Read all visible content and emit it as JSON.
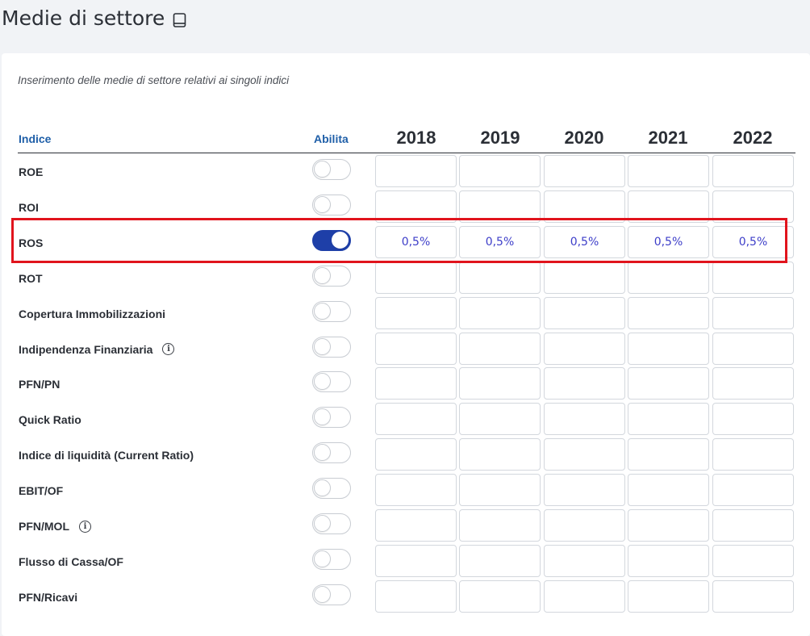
{
  "page": {
    "title": "Medie di settore",
    "title_icon": "book-icon",
    "subtitle": "Inserimento delle medie di settore relativi ai singoli indici"
  },
  "table": {
    "col_indice": "Indice",
    "col_abilita": "Abilita",
    "years": [
      "2018",
      "2019",
      "2020",
      "2021",
      "2022"
    ],
    "rows": [
      {
        "label": "ROE",
        "enabled": false,
        "info": false,
        "values": [
          "",
          "",
          "",
          "",
          ""
        ]
      },
      {
        "label": "ROI",
        "enabled": false,
        "info": false,
        "values": [
          "",
          "",
          "",
          "",
          ""
        ]
      },
      {
        "label": "ROS",
        "enabled": true,
        "info": false,
        "values": [
          "0,5%",
          "0,5%",
          "0,5%",
          "0,5%",
          "0,5%"
        ]
      },
      {
        "label": "ROT",
        "enabled": false,
        "info": false,
        "values": [
          "",
          "",
          "",
          "",
          ""
        ]
      },
      {
        "label": "Copertura Immobilizzazioni",
        "enabled": false,
        "info": false,
        "values": [
          "",
          "",
          "",
          "",
          ""
        ]
      },
      {
        "label": "Indipendenza Finanziaria",
        "enabled": false,
        "info": true,
        "values": [
          "",
          "",
          "",
          "",
          ""
        ]
      },
      {
        "label": "PFN/PN",
        "enabled": false,
        "info": false,
        "values": [
          "",
          "",
          "",
          "",
          ""
        ]
      },
      {
        "label": "Quick Ratio",
        "enabled": false,
        "info": false,
        "values": [
          "",
          "",
          "",
          "",
          ""
        ]
      },
      {
        "label": "Indice di liquidità (Current Ratio)",
        "enabled": false,
        "info": false,
        "values": [
          "",
          "",
          "",
          "",
          ""
        ]
      },
      {
        "label": "EBIT/OF",
        "enabled": false,
        "info": false,
        "values": [
          "",
          "",
          "",
          "",
          ""
        ]
      },
      {
        "label": "PFN/MOL",
        "enabled": false,
        "info": true,
        "values": [
          "",
          "",
          "",
          "",
          ""
        ]
      },
      {
        "label": "Flusso di Cassa/OF",
        "enabled": false,
        "info": false,
        "values": [
          "",
          "",
          "",
          "",
          ""
        ]
      },
      {
        "label": "PFN/Ricavi",
        "enabled": false,
        "info": false,
        "values": [
          "",
          "",
          "",
          "",
          ""
        ]
      }
    ]
  },
  "colors": {
    "accent": "#1f5fa8",
    "toggle_on": "#1e3fa8",
    "value_text": "#3d3ec9",
    "highlight": "#e1141d"
  }
}
